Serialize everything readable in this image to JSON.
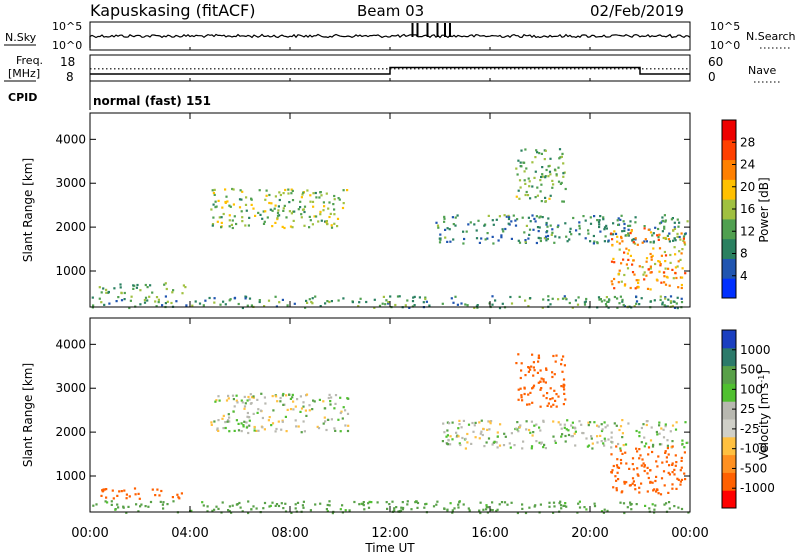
{
  "header": {
    "station": "Kapuskasing (fitACF)",
    "beam": "Beam 03",
    "date": "02/Feb/2019"
  },
  "noise_panel": {
    "left_label": "N.Sky",
    "left_ticks": [
      "10^5",
      "10^0"
    ],
    "right_ticks": [
      "10^5",
      "10^0"
    ],
    "right_label": "N.Search"
  },
  "freq_panel": {
    "left_label_1": "Freq.",
    "left_label_2": "[MHz]",
    "left_ticks": [
      "18",
      "8"
    ],
    "right_ticks": [
      "60",
      "0"
    ],
    "right_label": "Nave",
    "freq_series_mhz": [
      {
        "t": 0,
        "v": 10.5
      },
      {
        "t": 12,
        "v": 10.5
      },
      {
        "t": 12,
        "v": 13.2
      },
      {
        "t": 22,
        "v": 13.2
      },
      {
        "t": 22,
        "v": 10.5
      },
      {
        "t": 24,
        "v": 10.5
      }
    ],
    "nave_series": [
      {
        "t": 0,
        "v": 28
      },
      {
        "t": 24,
        "v": 28
      }
    ]
  },
  "cpid": {
    "label": "CPID",
    "value": "normal (fast) 151"
  },
  "power_panel": {
    "ylabel": "Slant Range [km]",
    "y_ticks": [
      "4000",
      "3000",
      "2000",
      "1000"
    ],
    "colorbar_label": "Power [dB]",
    "colorbar_ticks": [
      "28",
      "24",
      "20",
      "16",
      "12",
      "8",
      "4"
    ],
    "colors": [
      "#0030ff",
      "#2055b0",
      "#2a8060",
      "#50a050",
      "#a0c040",
      "#ffc000",
      "#ff8000",
      "#ff4000",
      "#ee0000"
    ]
  },
  "velocity_panel": {
    "ylabel": "Slant Range [km]",
    "y_ticks": [
      "4000",
      "3000",
      "2000",
      "1000"
    ],
    "colorbar_label": "Velocity [m s",
    "colorbar_sup": "-1",
    "colorbar_label_end": "]",
    "colorbar_ticks": [
      "1000",
      "500",
      "100",
      "25",
      "-25",
      "-100",
      "-500",
      "-1000"
    ],
    "colors": [
      "#1a3fc0",
      "#2c7a6a",
      "#58a048",
      "#50c030",
      "#b8b8b0",
      "#d0d0c8",
      "#ffc040",
      "#ff9020",
      "#ff6000",
      "#ff0000"
    ]
  },
  "x_axis": {
    "ticks": [
      "00:00",
      "04:00",
      "08:00",
      "12:00",
      "16:00",
      "20:00",
      "00:00"
    ],
    "label": "Time UT"
  },
  "chart_data": [
    {
      "type": "heatmap",
      "quantity": "power",
      "x_range_hours": [
        0,
        24
      ],
      "y_range_km": [
        180,
        4600
      ],
      "color_range_db": [
        0,
        30
      ],
      "regions": [
        {
          "t0": 4.8,
          "t1": 10.3,
          "r0": 2000,
          "r1": 2900,
          "level_db": 14
        },
        {
          "t0": 13.8,
          "t1": 23.9,
          "r0": 1650,
          "r1": 2300,
          "level_db": 9
        },
        {
          "t0": 20.8,
          "t1": 23.8,
          "r0": 600,
          "r1": 2000,
          "level_db": 20
        },
        {
          "t0": 0.3,
          "t1": 3.8,
          "r0": 500,
          "r1": 750,
          "level_db": 12
        },
        {
          "t0": 0,
          "t1": 24,
          "r0": 180,
          "r1": 450,
          "level_db": 10
        },
        {
          "t0": 17,
          "t1": 19,
          "r0": 2600,
          "r1": 3800,
          "level_db": 12
        }
      ]
    },
    {
      "type": "heatmap",
      "quantity": "velocity",
      "x_range_hours": [
        0,
        24
      ],
      "y_range_km": [
        180,
        4600
      ],
      "color_range_ms": [
        -1000,
        1000
      ],
      "regions": [
        {
          "t0": 4.8,
          "t1": 10.3,
          "r0": 2000,
          "r1": 2900,
          "velocity_ms": 0
        },
        {
          "t0": 14.0,
          "t1": 23.9,
          "r0": 1650,
          "r1": 2300,
          "velocity_ms": 0
        },
        {
          "t0": 20.8,
          "t1": 23.8,
          "r0": 600,
          "r1": 1700,
          "velocity_ms": -300
        },
        {
          "t0": 0.3,
          "t1": 3.8,
          "r0": 500,
          "r1": 750,
          "velocity_ms": -200
        },
        {
          "t0": 0,
          "t1": 24,
          "r0": 180,
          "r1": 450,
          "velocity_ms": 60
        },
        {
          "t0": 17,
          "t1": 19,
          "r0": 2600,
          "r1": 3800,
          "velocity_ms": -300
        }
      ]
    }
  ]
}
